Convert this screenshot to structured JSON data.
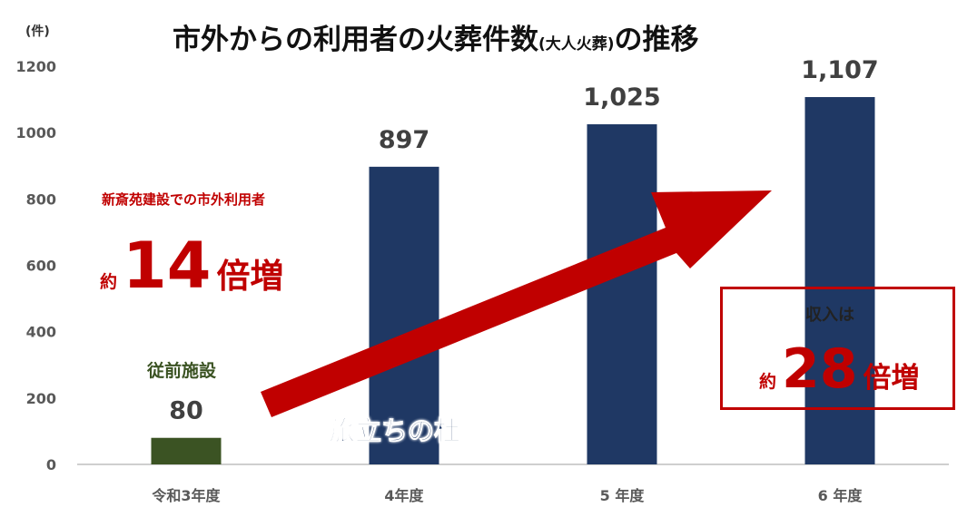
{
  "unit_label": "(件)",
  "chart_data": {
    "type": "bar",
    "title_main": "市外からの利用者の火葬件数",
    "title_paren": "(大人火葬)",
    "title_tail": "の推移",
    "categories": [
      "令和3年度",
      "4年度",
      "5 年度",
      "6 年度"
    ],
    "values": [
      80,
      897,
      1025,
      1107
    ],
    "value_labels": [
      "80",
      "897",
      "1,025",
      "1,107"
    ],
    "ylim": [
      0,
      1200
    ],
    "yticks": [
      "0",
      "200",
      "400",
      "600",
      "800",
      "1000",
      "1200"
    ],
    "grid": false,
    "bar_colors": [
      "#3b5323",
      "#1f3864",
      "#1f3864",
      "#1f3864"
    ]
  },
  "annotations": {
    "growth_subtitle": "新斎苑建設での市外利用者",
    "growth_prefix": "約",
    "growth_number": "14",
    "growth_suffix": "倍増",
    "previous_facility_label": "従前施設",
    "facility_name": "旅立ちの杜",
    "revenue_subtitle": "収入は",
    "revenue_prefix": "約",
    "revenue_number": "28",
    "revenue_suffix": "倍増"
  },
  "colors": {
    "accent_red": "#c00000",
    "bar_navy": "#1f3864",
    "bar_green": "#3b5323",
    "axis": "#bfbfbf",
    "tick_text": "#595959"
  }
}
